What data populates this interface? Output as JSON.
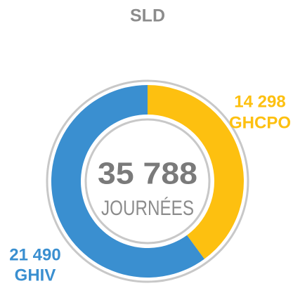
{
  "chart_data": {
    "type": "donut",
    "title": "SLD",
    "categories": [
      "GHCPO",
      "GHIV"
    ],
    "values": [
      14298,
      21490
    ],
    "value_labels": [
      "14 298",
      "21 490"
    ],
    "colors": [
      "#fdc010",
      "#3a8fd0"
    ],
    "center_label": "35 788",
    "center_sublabel": "JOURNÉES"
  }
}
